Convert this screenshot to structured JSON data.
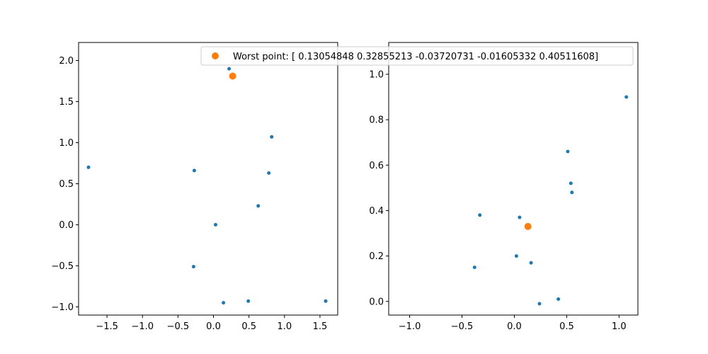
{
  "chart_data": [
    {
      "type": "scatter",
      "xlim": [
        -1.9,
        1.75
      ],
      "ylim": [
        -1.1,
        2.22
      ],
      "x_ticks": [
        -1.5,
        -1.0,
        -0.5,
        0.0,
        0.5,
        1.0,
        1.5
      ],
      "y_ticks": [
        -1.0,
        -0.5,
        0.0,
        0.5,
        1.0,
        1.5,
        2.0
      ],
      "x_tick_labels": [
        "−1.5",
        "−1.0",
        "−0.5",
        "0.0",
        "0.5",
        "1.0",
        "1.5"
      ],
      "y_tick_labels": [
        "−1.0",
        "−0.5",
        "0.0",
        "0.5",
        "1.0",
        "1.5",
        "2.0"
      ],
      "grid": false,
      "series": [
        {
          "color": "#1f77b4",
          "marker": "small-dot",
          "x": [
            -1.76,
            -0.27,
            0.03,
            -0.28,
            0.22,
            0.63,
            0.78,
            0.82,
            0.14,
            0.49,
            1.58
          ],
          "y": [
            0.7,
            0.66,
            0.0,
            -0.51,
            1.9,
            0.23,
            0.63,
            1.07,
            -0.95,
            -0.93,
            -0.93
          ]
        },
        {
          "name": "Worst point: [ 0.13054848  0.32855213 -0.03720731 -0.01605332  0.40511608]",
          "color": "#ff7f0e",
          "marker": "dot",
          "x": [
            0.27
          ],
          "y": [
            1.81
          ]
        }
      ],
      "legend": "top-right"
    },
    {
      "type": "scatter",
      "xlim": [
        -1.2,
        1.18
      ],
      "ylim": [
        -0.06,
        1.14
      ],
      "x_ticks": [
        -1.0,
        -0.5,
        0.0,
        0.5,
        1.0
      ],
      "y_ticks": [
        0.0,
        0.2,
        0.4,
        0.6,
        0.8,
        1.0
      ],
      "x_tick_labels": [
        "−1.0",
        "−0.5",
        "0.0",
        "0.5",
        "1.0"
      ],
      "y_tick_labels": [
        "0.0",
        "0.2",
        "0.4",
        "0.6",
        "0.8",
        "1.0"
      ],
      "grid": false,
      "series": [
        {
          "color": "#1f77b4",
          "marker": "small-dot",
          "x": [
            -0.33,
            0.05,
            0.02,
            -0.38,
            0.16,
            0.24,
            0.42,
            0.51,
            0.54,
            0.55,
            1.07
          ],
          "y": [
            0.38,
            0.37,
            0.2,
            0.15,
            0.17,
            -0.01,
            0.01,
            0.66,
            0.52,
            0.48,
            0.9
          ]
        },
        {
          "color": "#ff7f0e",
          "marker": "dot",
          "x": [
            0.13
          ],
          "y": [
            0.33
          ]
        }
      ]
    }
  ]
}
